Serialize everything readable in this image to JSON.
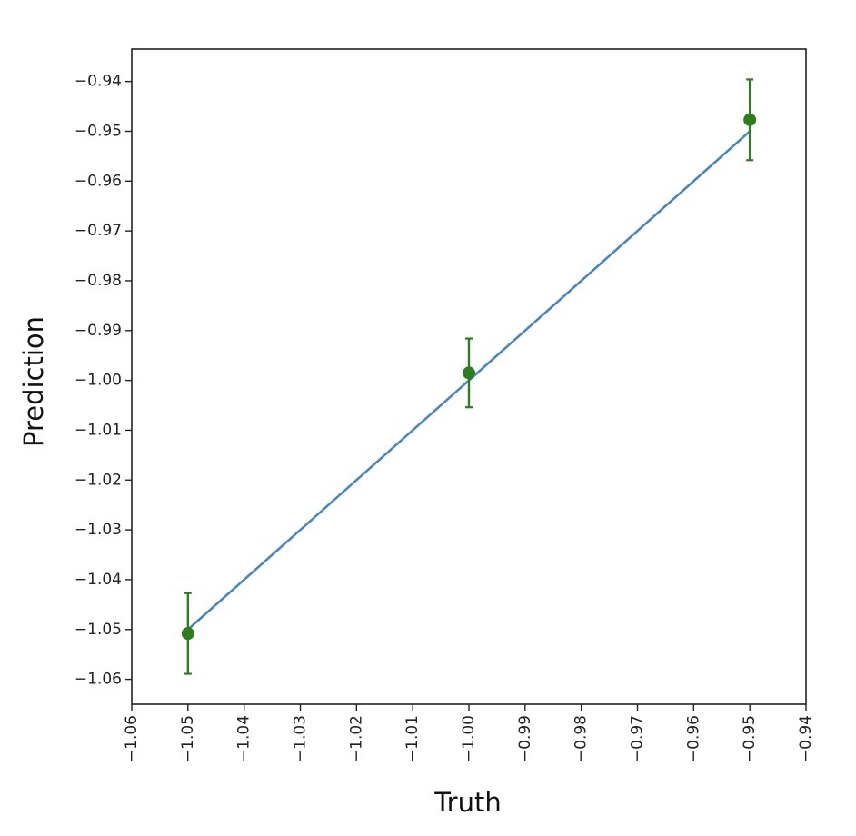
{
  "chart_data": {
    "type": "scatter",
    "title": "",
    "xlabel": "Truth",
    "ylabel": "Prediction",
    "xlim": [
      -1.06,
      -0.94
    ],
    "ylim": [
      -1.065,
      -0.9335
    ],
    "grid": false,
    "x_ticks": [
      -1.06,
      -1.05,
      -1.04,
      -1.03,
      -1.02,
      -1.01,
      -1.0,
      -0.99,
      -0.98,
      -0.97,
      -0.96,
      -0.95,
      -0.94
    ],
    "x_tick_labels": [
      "−1.06",
      "−1.05",
      "−1.04",
      "−1.03",
      "−1.02",
      "−1.01",
      "−1.00",
      "−0.99",
      "−0.98",
      "−0.97",
      "−0.96",
      "−0.95",
      "−0.94"
    ],
    "y_ticks": [
      -0.94,
      -0.95,
      -0.96,
      -0.97,
      -0.98,
      -0.99,
      -1.0,
      -1.01,
      -1.02,
      -1.03,
      -1.04,
      -1.05,
      -1.06
    ],
    "y_tick_labels": [
      "−0.94",
      "−0.95",
      "−0.96",
      "−0.97",
      "−0.98",
      "−0.99",
      "−1.00",
      "−1.01",
      "−1.02",
      "−1.03",
      "−1.04",
      "−1.05",
      "−1.06"
    ],
    "series": [
      {
        "type": "line",
        "color": "#4a86c0",
        "x": [
          -1.05,
          -0.95
        ],
        "y": [
          -1.05,
          -0.95
        ]
      },
      {
        "type": "errorbar",
        "color": "#2e7d1e",
        "x": [
          -1.05,
          -1.0,
          -0.95
        ],
        "y": [
          -1.0508,
          -0.9985,
          -0.9477
        ],
        "yerr": [
          0.0081,
          0.0069,
          0.0081
        ]
      }
    ]
  }
}
